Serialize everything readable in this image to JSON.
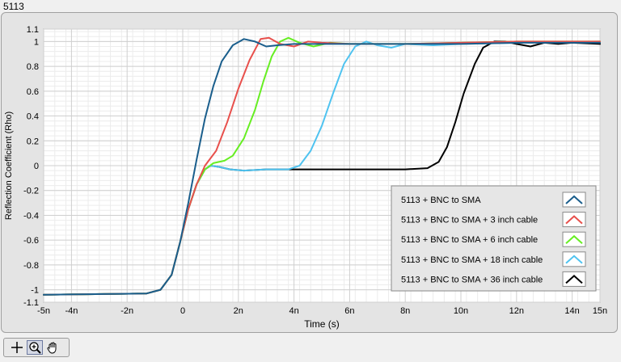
{
  "window": {
    "title": "5113"
  },
  "toolbar": {
    "tools": [
      "cursor-move-icon",
      "zoom-icon",
      "pan-hand-icon"
    ]
  },
  "chart_data": {
    "type": "line",
    "title": "",
    "xlabel": "Time (s)",
    "ylabel": "Reflection Coefficient (Rho)",
    "xlim": [
      -5,
      15
    ],
    "ylim": [
      -1.1,
      1.1
    ],
    "x_unit": "ns",
    "grid": true,
    "legend_placement": "bottom-right",
    "x_ticks": [
      {
        "v": -5,
        "label": "-5n"
      },
      {
        "v": -4,
        "label": "-4n"
      },
      {
        "v": -2,
        "label": "-2n"
      },
      {
        "v": 0,
        "label": "0"
      },
      {
        "v": 2,
        "label": "2n"
      },
      {
        "v": 4,
        "label": "4n"
      },
      {
        "v": 6,
        "label": "6n"
      },
      {
        "v": 8,
        "label": "8n"
      },
      {
        "v": 10,
        "label": "10n"
      },
      {
        "v": 12,
        "label": "12n"
      },
      {
        "v": 14,
        "label": "14n"
      },
      {
        "v": 15,
        "label": "15n"
      }
    ],
    "y_ticks": [
      {
        "v": 1.1,
        "label": "1.1"
      },
      {
        "v": 1,
        "label": "1"
      },
      {
        "v": 0.8,
        "label": "0.8"
      },
      {
        "v": 0.6,
        "label": "0.6"
      },
      {
        "v": 0.4,
        "label": "0.4"
      },
      {
        "v": 0.2,
        "label": "0.2"
      },
      {
        "v": 0,
        "label": "0"
      },
      {
        "v": -0.2,
        "label": "-0.2"
      },
      {
        "v": -0.4,
        "label": "-0.4"
      },
      {
        "v": -0.6,
        "label": "-0.6"
      },
      {
        "v": -0.8,
        "label": "-0.8"
      },
      {
        "v": -1,
        "label": "-1"
      },
      {
        "v": -1.1,
        "label": "-1.1"
      }
    ],
    "series": [
      {
        "name": "5113 + BNC to SMA + 36 inch cable",
        "color": "#000000",
        "points": [
          [
            -5,
            -1.04
          ],
          [
            -1.3,
            -1.03
          ],
          [
            -0.8,
            -1.0
          ],
          [
            -0.4,
            -0.88
          ],
          [
            -0.1,
            -0.62
          ],
          [
            0.2,
            -0.35
          ],
          [
            0.5,
            -0.15
          ],
          [
            0.8,
            -0.03
          ],
          [
            1.0,
            0.0
          ],
          [
            1.3,
            -0.01
          ],
          [
            1.7,
            -0.03
          ],
          [
            2.2,
            -0.04
          ],
          [
            3.0,
            -0.03
          ],
          [
            4.0,
            -0.03
          ],
          [
            6.0,
            -0.03
          ],
          [
            8.0,
            -0.03
          ],
          [
            8.8,
            -0.02
          ],
          [
            9.2,
            0.03
          ],
          [
            9.5,
            0.15
          ],
          [
            9.8,
            0.35
          ],
          [
            10.1,
            0.58
          ],
          [
            10.5,
            0.82
          ],
          [
            10.8,
            0.95
          ],
          [
            11.2,
            1.0
          ],
          [
            11.6,
            1.0
          ],
          [
            12.0,
            0.98
          ],
          [
            12.5,
            0.96
          ],
          [
            13.0,
            0.99
          ],
          [
            13.5,
            0.98
          ],
          [
            14.0,
            0.99
          ],
          [
            15.0,
            0.98
          ]
        ]
      },
      {
        "name": "5113 + BNC to SMA + 18 inch cable",
        "color": "#4fc3f0",
        "points": [
          [
            -5,
            -1.04
          ],
          [
            -1.3,
            -1.03
          ],
          [
            -0.8,
            -1.0
          ],
          [
            -0.4,
            -0.88
          ],
          [
            -0.1,
            -0.62
          ],
          [
            0.2,
            -0.35
          ],
          [
            0.5,
            -0.15
          ],
          [
            0.8,
            -0.03
          ],
          [
            1.0,
            0.0
          ],
          [
            1.3,
            -0.01
          ],
          [
            1.7,
            -0.03
          ],
          [
            2.2,
            -0.04
          ],
          [
            3.0,
            -0.03
          ],
          [
            3.8,
            -0.03
          ],
          [
            4.2,
            0.0
          ],
          [
            4.6,
            0.12
          ],
          [
            5.0,
            0.32
          ],
          [
            5.4,
            0.58
          ],
          [
            5.8,
            0.82
          ],
          [
            6.2,
            0.96
          ],
          [
            6.6,
            1.0
          ],
          [
            7.0,
            0.97
          ],
          [
            7.5,
            0.95
          ],
          [
            8.0,
            0.98
          ],
          [
            9.0,
            0.97
          ],
          [
            10.0,
            0.98
          ],
          [
            12.0,
            0.99
          ],
          [
            15.0,
            1.0
          ]
        ]
      },
      {
        "name": "5113 + BNC to SMA + 6 inch cable",
        "color": "#66ee22",
        "points": [
          [
            -5,
            -1.04
          ],
          [
            -1.3,
            -1.03
          ],
          [
            -0.8,
            -1.0
          ],
          [
            -0.4,
            -0.88
          ],
          [
            -0.1,
            -0.62
          ],
          [
            0.2,
            -0.35
          ],
          [
            0.5,
            -0.15
          ],
          [
            0.8,
            -0.03
          ],
          [
            1.1,
            0.02
          ],
          [
            1.5,
            0.04
          ],
          [
            1.8,
            0.08
          ],
          [
            2.2,
            0.22
          ],
          [
            2.6,
            0.45
          ],
          [
            2.9,
            0.68
          ],
          [
            3.2,
            0.88
          ],
          [
            3.5,
            1.0
          ],
          [
            3.8,
            1.03
          ],
          [
            4.2,
            0.99
          ],
          [
            4.7,
            0.96
          ],
          [
            5.3,
            0.99
          ],
          [
            6.0,
            0.98
          ],
          [
            8.0,
            0.98
          ],
          [
            10.0,
            0.99
          ],
          [
            12.0,
            1.0
          ],
          [
            15.0,
            1.0
          ]
        ]
      },
      {
        "name": "5113 + BNC to SMA + 3 inch cable",
        "color": "#e8504c",
        "points": [
          [
            -5,
            -1.04
          ],
          [
            -1.3,
            -1.03
          ],
          [
            -0.8,
            -1.0
          ],
          [
            -0.4,
            -0.88
          ],
          [
            -0.1,
            -0.62
          ],
          [
            0.2,
            -0.35
          ],
          [
            0.5,
            -0.15
          ],
          [
            0.8,
            0.0
          ],
          [
            1.2,
            0.12
          ],
          [
            1.6,
            0.35
          ],
          [
            2.0,
            0.62
          ],
          [
            2.4,
            0.85
          ],
          [
            2.8,
            1.02
          ],
          [
            3.1,
            1.03
          ],
          [
            3.5,
            0.98
          ],
          [
            4.0,
            0.96
          ],
          [
            4.5,
            1.0
          ],
          [
            5.0,
            0.99
          ],
          [
            6.0,
            0.98
          ],
          [
            8.0,
            0.98
          ],
          [
            10.0,
            0.99
          ],
          [
            12.0,
            1.0
          ],
          [
            15.0,
            1.0
          ]
        ]
      },
      {
        "name": "5113 + BNC to SMA",
        "color": "#1a5e8c",
        "points": [
          [
            -5,
            -1.04
          ],
          [
            -1.3,
            -1.03
          ],
          [
            -0.8,
            -1.0
          ],
          [
            -0.4,
            -0.88
          ],
          [
            -0.1,
            -0.62
          ],
          [
            0.2,
            -0.3
          ],
          [
            0.5,
            0.05
          ],
          [
            0.8,
            0.38
          ],
          [
            1.1,
            0.64
          ],
          [
            1.4,
            0.84
          ],
          [
            1.8,
            0.97
          ],
          [
            2.2,
            1.02
          ],
          [
            2.6,
            1.0
          ],
          [
            3.0,
            0.96
          ],
          [
            3.4,
            0.97
          ],
          [
            4.0,
            0.98
          ],
          [
            6.0,
            0.98
          ],
          [
            8.0,
            0.98
          ],
          [
            10.0,
            0.98
          ],
          [
            12.0,
            0.99
          ],
          [
            15.0,
            0.99
          ]
        ]
      }
    ]
  }
}
